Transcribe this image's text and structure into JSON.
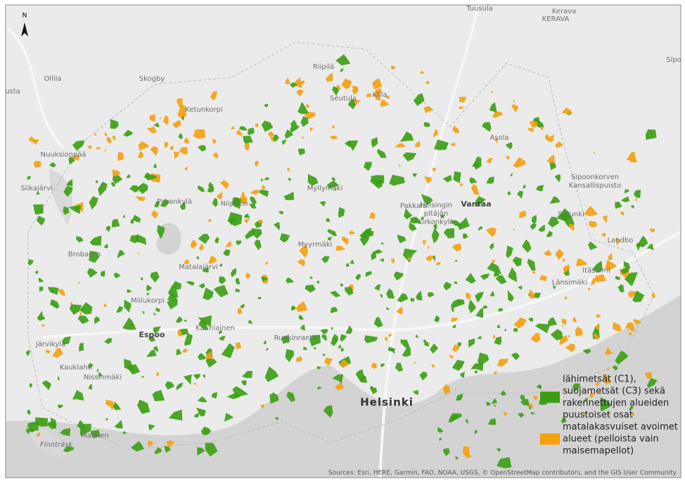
{
  "map": {
    "north_label": "N",
    "places": [
      "Tuusula",
      "Kerava",
      "KERAVA",
      "Sipo",
      "Ollila",
      "usta",
      "Skogby",
      "Riipilä",
      "Seutula",
      "Kiila",
      "Ketunkorpi",
      "Nuuksionpää",
      "Siikajärvi",
      "Myllymäki",
      "Pakankylä",
      "Niipperi",
      "Pakkala",
      [
        "Helsingin",
        "pitäjän",
        "kirkonkylä"
      ],
      "Vantaa",
      "Asola",
      [
        "Sipoonkorven",
        "Kansallispuisto"
      ],
      "Sotunki",
      "Landbo",
      "Brobacka",
      "Matalajärvi",
      "Myyrmäki",
      "Itäsalmi",
      "Länsimäki",
      "Miilukorpi",
      "Espoo",
      "Kauniainen",
      "Ruukinranta",
      "Järvikylä",
      "Kauklahti",
      "Nissinmäki",
      "Helsinki",
      "Malmen",
      "Finnträsk"
    ],
    "legend": [
      {
        "lines": [
          "lähimetsät (C1),",
          "suojametsät (C3) sekä",
          "rakennettujen alueiden",
          "puustoiset osat"
        ],
        "color": "#3a9e12"
      },
      {
        "lines": [
          "matalakasvuiset avoimet",
          "alueet (pelloista vain",
          "maisemapellot)"
        ],
        "color": "#f5a00f"
      }
    ],
    "attribution": "Sources: Esri, HERE, Garmin, FAO, NOAA, USGS, © OpenStreetMap contributors, and the GIS User Community"
  }
}
